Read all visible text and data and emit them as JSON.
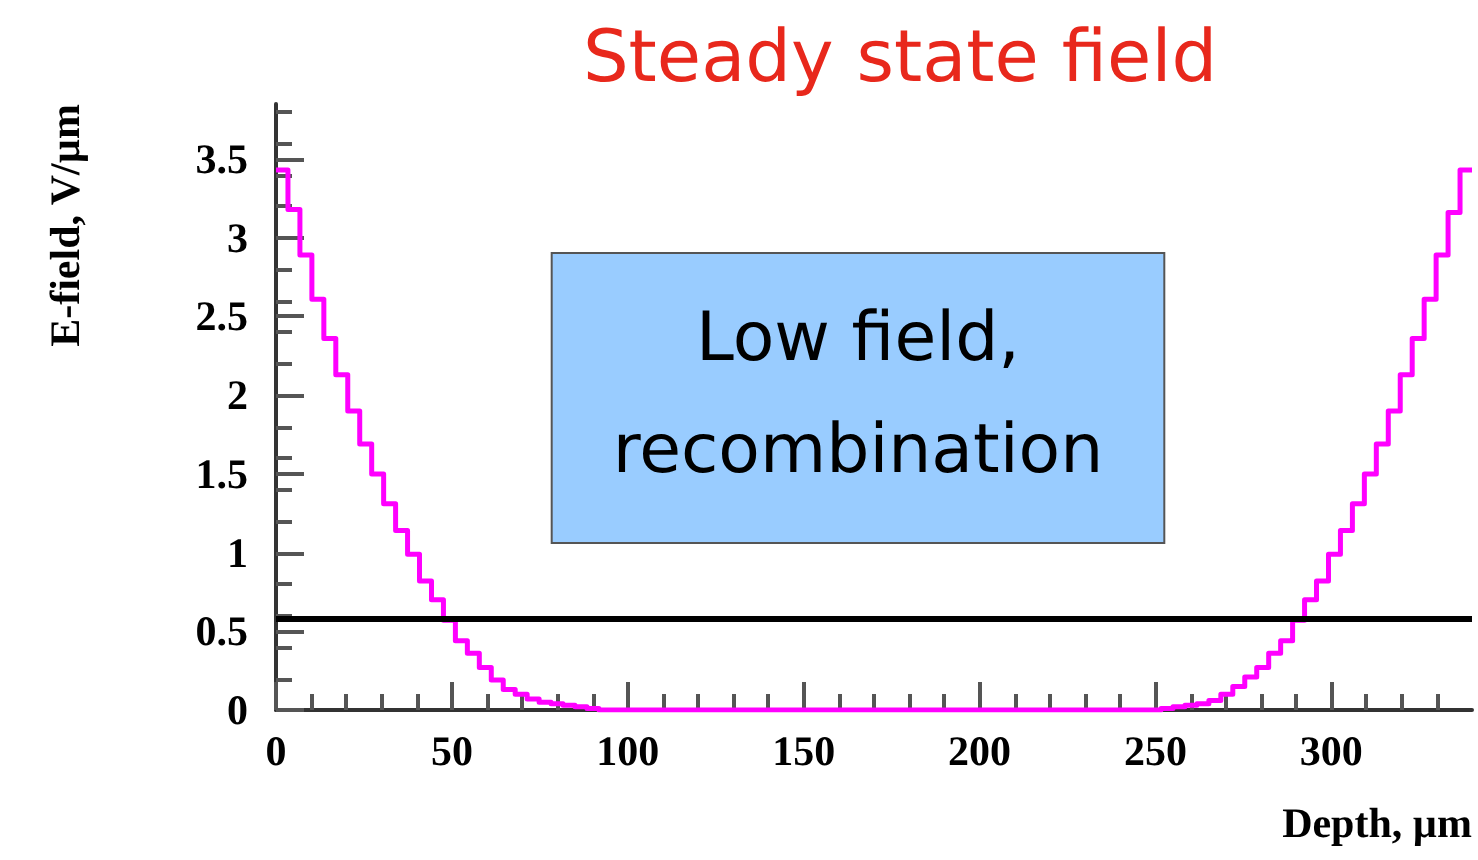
{
  "chart_data": {
    "type": "histogram",
    "title": "Steady state field",
    "xlabel": "Depth, µm",
    "ylabel": "E-field, V/µm",
    "annotations": [
      "Low field,\nrecombination"
    ],
    "bins": [
      0,
      3.4,
      6.8,
      10.2,
      13.6,
      17,
      20.4,
      23.8,
      27.2,
      30.6,
      34,
      37.4,
      40.8,
      44.2,
      47.6,
      51,
      54.4,
      57.8,
      61.2,
      64.6,
      68,
      71.4,
      74.8,
      78.2,
      81.6,
      85,
      88.4,
      91.8,
      95.2,
      98.6,
      102,
      105.4,
      108.8,
      112.2,
      115.6,
      119,
      122.4,
      125.8,
      129.2,
      132.6,
      136,
      139.4,
      142.8,
      146.2,
      149.6,
      153,
      156.4,
      159.8,
      163.2,
      166.6,
      170,
      173.4,
      176.8,
      180.2,
      183.6,
      187,
      190.4,
      193.8,
      197.2,
      200.6,
      204,
      207.4,
      210.8,
      214.2,
      217.6,
      221,
      224.4,
      227.8,
      231.2,
      234.6,
      238,
      241.4,
      244.8,
      248.2,
      251.6,
      255,
      258.4,
      261.8,
      265.2,
      268.6,
      272,
      275.4,
      278.8,
      282.2,
      285.6,
      289,
      292.4,
      295.8,
      299.2,
      302.6,
      306,
      309.4,
      312.8,
      316.2,
      319.6,
      323,
      326.4,
      329.8,
      333.2,
      336.6,
      340
    ],
    "values": [
      3.43,
      3.18,
      2.89,
      2.61,
      2.36,
      2.13,
      1.9,
      1.69,
      1.5,
      1.31,
      1.14,
      0.99,
      0.82,
      0.7,
      0.57,
      0.44,
      0.36,
      0.27,
      0.19,
      0.13,
      0.1,
      0.07,
      0.05,
      0.04,
      0.03,
      0.02,
      0.01,
      0,
      0,
      0,
      0,
      0,
      0,
      0,
      0,
      0,
      0,
      0,
      0,
      0,
      0,
      0,
      0,
      0,
      0,
      0,
      0,
      0,
      0,
      0,
      0,
      0,
      0,
      0,
      0,
      0,
      0,
      0,
      0,
      0,
      0,
      0,
      0,
      0,
      0,
      0,
      0,
      0,
      0,
      0,
      0,
      0,
      0,
      0,
      0.01,
      0.02,
      0.03,
      0.04,
      0.06,
      0.1,
      0.15,
      0.21,
      0.27,
      0.36,
      0.44,
      0.57,
      0.7,
      0.82,
      0.99,
      1.14,
      1.31,
      1.5,
      1.69,
      1.9,
      2.13,
      2.36,
      2.61,
      2.89,
      3.16,
      3.43
    ],
    "color": "#ff00ff",
    "xlim": [
      0,
      340
    ],
    "xticks": [
      0,
      50,
      100,
      150,
      200,
      250,
      300
    ],
    "ylim": [
      0,
      3.85
    ],
    "yticks": [
      0,
      0.5,
      1,
      1.5,
      2,
      2.5,
      3,
      3.5
    ],
    "ref_lines": [
      {
        "axis": "y",
        "value": 0.58,
        "color": "#000000"
      }
    ]
  }
}
